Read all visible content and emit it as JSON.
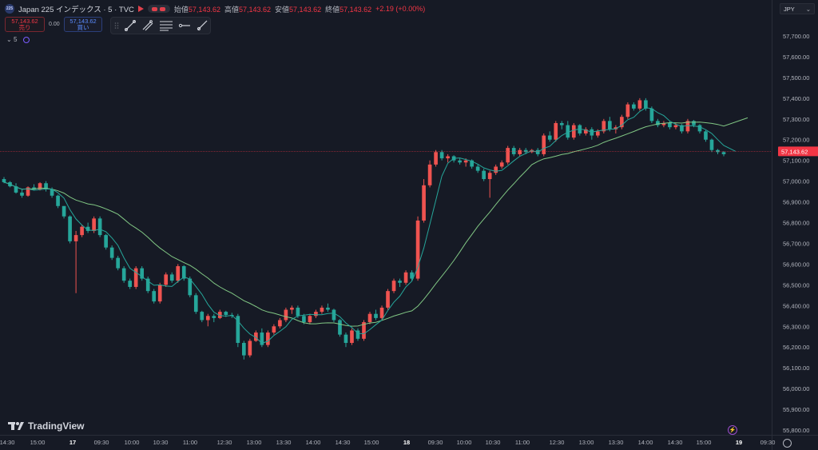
{
  "header": {
    "symbol_badge": "225",
    "title": "Japan 225 インデックス · 5 · TVC",
    "ohlc": [
      {
        "k": "始値",
        "v": "57,143.62"
      },
      {
        "k": "高値",
        "v": "57,143.62"
      },
      {
        "k": "安値",
        "v": "57,143.62"
      },
      {
        "k": "終値",
        "v": "57,143.62"
      },
      {
        "k": "",
        "v": "+2.19 (+0.00%)"
      }
    ]
  },
  "trade": {
    "sell_price": "57,143.62",
    "sell_label": "売り",
    "spread": "0.00",
    "buy_price": "57,143.62",
    "buy_label": "買い"
  },
  "indicator_row": {
    "interval": "5"
  },
  "currency": "JPY",
  "brand": "TradingView",
  "colors": {
    "up": "#ef5350",
    "down": "#26a69a",
    "bg": "#161a25",
    "ma_fast": "#26a69a",
    "ma_slow": "#81c784",
    "price_line": "#f23645"
  },
  "chart_data": {
    "type": "candlestick",
    "y_ticks": [
      "57,700.00",
      "57,600.00",
      "57,500.00",
      "57,400.00",
      "57,300.00",
      "57,200.00",
      "57,100.00",
      "57,000.00",
      "56,900.00",
      "56,800.00",
      "56,700.00",
      "56,600.00",
      "56,500.00",
      "56,400.00",
      "56,300.00",
      "56,200.00",
      "56,100.00",
      "56,000.00",
      "55,900.00",
      "55,800.00"
    ],
    "ylim": [
      55780,
      57820
    ],
    "x_ticks": [
      "14:30",
      "15:00",
      "17",
      "09:30",
      "10:00",
      "10:30",
      "11:00",
      "12:30",
      "13:00",
      "13:30",
      "14:00",
      "14:30",
      "15:00",
      "18",
      "09:30",
      "10:00",
      "10:30",
      "11:00",
      "12:30",
      "13:00",
      "13:30",
      "14:00",
      "14:30",
      "15:00",
      "19",
      "09:30"
    ],
    "bold_x_ticks": [
      "17",
      "18",
      "19"
    ],
    "last_price": "57,143.62",
    "last_value": 57143.62,
    "candles": [
      [
        57010,
        57020,
        56990,
        56995
      ],
      [
        56995,
        57000,
        56970,
        56975
      ],
      [
        56975,
        56990,
        56940,
        56945
      ],
      [
        56945,
        56960,
        56920,
        56930
      ],
      [
        56930,
        56975,
        56925,
        56970
      ],
      [
        56970,
        56985,
        56955,
        56960
      ],
      [
        56960,
        56995,
        56955,
        56990
      ],
      [
        56990,
        57000,
        56950,
        56960
      ],
      [
        56960,
        56970,
        56920,
        56930
      ],
      [
        56930,
        56935,
        56870,
        56880
      ],
      [
        56880,
        56880,
        56820,
        56830
      ],
      [
        56830,
        56835,
        56700,
        56710
      ],
      [
        56710,
        56760,
        56460,
        56740
      ],
      [
        56740,
        56790,
        56730,
        56780
      ],
      [
        56780,
        56800,
        56750,
        56760
      ],
      [
        56760,
        56830,
        56750,
        56820
      ],
      [
        56820,
        56830,
        56730,
        56740
      ],
      [
        56740,
        56745,
        56670,
        56680
      ],
      [
        56680,
        56690,
        56620,
        56630
      ],
      [
        56630,
        56640,
        56570,
        56580
      ],
      [
        56580,
        56590,
        56510,
        56520
      ],
      [
        56520,
        56530,
        56480,
        56490
      ],
      [
        56490,
        56590,
        56480,
        56580
      ],
      [
        56580,
        56590,
        56520,
        56530
      ],
      [
        56530,
        56540,
        56460,
        56470
      ],
      [
        56470,
        56480,
        56410,
        56420
      ],
      [
        56420,
        56510,
        56410,
        56500
      ],
      [
        56500,
        56560,
        56490,
        56550
      ],
      [
        56550,
        56560,
        56510,
        56520
      ],
      [
        56520,
        56600,
        56510,
        56590
      ],
      [
        56590,
        56595,
        56520,
        56530
      ],
      [
        56530,
        56540,
        56440,
        56450
      ],
      [
        56450,
        56460,
        56360,
        56370
      ],
      [
        56370,
        56375,
        56320,
        56330
      ],
      [
        56330,
        56360,
        56300,
        56350
      ],
      [
        56350,
        56360,
        56320,
        56340
      ],
      [
        56340,
        56380,
        56335,
        56370
      ],
      [
        56370,
        56375,
        56345,
        56355
      ],
      [
        56355,
        56365,
        56340,
        56350
      ],
      [
        56350,
        56360,
        56200,
        56220
      ],
      [
        56220,
        56230,
        56140,
        56160
      ],
      [
        56160,
        56240,
        56150,
        56230
      ],
      [
        56230,
        56280,
        56225,
        56270
      ],
      [
        56270,
        56290,
        56200,
        56210
      ],
      [
        56210,
        56280,
        56200,
        56270
      ],
      [
        56270,
        56310,
        56260,
        56300
      ],
      [
        56300,
        56340,
        56290,
        56330
      ],
      [
        56330,
        56390,
        56320,
        56380
      ],
      [
        56380,
        56400,
        56360,
        56390
      ],
      [
        56390,
        56400,
        56340,
        56350
      ],
      [
        56350,
        56360,
        56310,
        56320
      ],
      [
        56320,
        56360,
        56310,
        56350
      ],
      [
        56350,
        56380,
        56340,
        56370
      ],
      [
        56370,
        56400,
        56360,
        56390
      ],
      [
        56390,
        56410,
        56370,
        56380
      ],
      [
        56380,
        56385,
        56320,
        56330
      ],
      [
        56330,
        56335,
        56250,
        56260
      ],
      [
        56260,
        56270,
        56200,
        56220
      ],
      [
        56220,
        56290,
        56210,
        56280
      ],
      [
        56280,
        56290,
        56230,
        56240
      ],
      [
        56240,
        56330,
        56230,
        56320
      ],
      [
        56320,
        56370,
        56310,
        56360
      ],
      [
        56360,
        56380,
        56330,
        56340
      ],
      [
        56340,
        56400,
        56330,
        56390
      ],
      [
        56390,
        56480,
        56380,
        56470
      ],
      [
        56470,
        56530,
        56460,
        56520
      ],
      [
        56520,
        56530,
        56490,
        56510
      ],
      [
        56510,
        56570,
        56500,
        56560
      ],
      [
        56560,
        56570,
        56520,
        56530
      ],
      [
        56530,
        56830,
        56520,
        56810
      ],
      [
        56810,
        57010,
        56800,
        56980
      ],
      [
        56980,
        57100,
        56970,
        57080
      ],
      [
        57080,
        57150,
        57070,
        57140
      ],
      [
        57140,
        57150,
        57100,
        57110
      ],
      [
        57110,
        57130,
        57090,
        57120
      ],
      [
        57120,
        57125,
        57090,
        57100
      ],
      [
        57100,
        57110,
        57080,
        57090
      ],
      [
        57090,
        57110,
        57070,
        57100
      ],
      [
        57100,
        57105,
        57060,
        57070
      ],
      [
        57070,
        57080,
        57040,
        57050
      ],
      [
        57050,
        57060,
        57000,
        57010
      ],
      [
        57010,
        57050,
        56920,
        57040
      ],
      [
        57040,
        57080,
        57030,
        57070
      ],
      [
        57070,
        57100,
        57060,
        57090
      ],
      [
        57090,
        57170,
        57080,
        57160
      ],
      [
        57160,
        57170,
        57120,
        57130
      ],
      [
        57130,
        57160,
        57120,
        57150
      ],
      [
        57150,
        57160,
        57130,
        57140
      ],
      [
        57140,
        57155,
        57135,
        57150
      ],
      [
        57150,
        57160,
        57120,
        57130
      ],
      [
        57130,
        57230,
        57120,
        57220
      ],
      [
        57220,
        57240,
        57190,
        57200
      ],
      [
        57200,
        57290,
        57190,
        57280
      ],
      [
        57280,
        57290,
        57250,
        57270
      ],
      [
        57270,
        57290,
        57200,
        57210
      ],
      [
        57210,
        57280,
        57200,
        57270
      ],
      [
        57270,
        57275,
        57220,
        57230
      ],
      [
        57230,
        57260,
        57220,
        57250
      ],
      [
        57250,
        57260,
        57200,
        57220
      ],
      [
        57220,
        57250,
        57210,
        57240
      ],
      [
        57240,
        57300,
        57230,
        57290
      ],
      [
        57290,
        57310,
        57240,
        57250
      ],
      [
        57250,
        57270,
        57230,
        57260
      ],
      [
        57260,
        57320,
        57250,
        57310
      ],
      [
        57310,
        57380,
        57300,
        57370
      ],
      [
        57370,
        57380,
        57340,
        57350
      ],
      [
        57350,
        57400,
        57340,
        57390
      ],
      [
        57390,
        57400,
        57340,
        57350
      ],
      [
        57350,
        57360,
        57280,
        57290
      ],
      [
        57290,
        57300,
        57260,
        57270
      ],
      [
        57270,
        57290,
        57260,
        57280
      ],
      [
        57280,
        57290,
        57250,
        57260
      ],
      [
        57260,
        57280,
        57250,
        57270
      ],
      [
        57270,
        57275,
        57230,
        57240
      ],
      [
        57240,
        57300,
        57230,
        57290
      ],
      [
        57290,
        57295,
        57260,
        57270
      ],
      [
        57270,
        57275,
        57230,
        57240
      ],
      [
        57240,
        57245,
        57190,
        57200
      ],
      [
        57200,
        57205,
        57140,
        57150
      ],
      [
        57150,
        57155,
        57130,
        57140
      ],
      [
        57140,
        57145,
        57120,
        57130
      ]
    ],
    "ma_fast": {
      "period": 5
    },
    "ma_slow": {
      "period": 20
    }
  }
}
